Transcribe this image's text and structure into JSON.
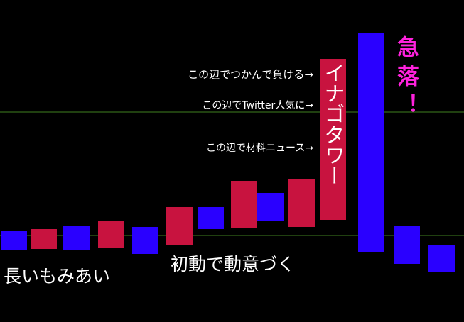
{
  "annotations": {
    "range": "長いもみあい",
    "initial_move": "初動で動意づく",
    "lose": "この辺でつかんで負ける→",
    "twitter": "この辺でTwitter人気に→",
    "news": "この辺で材料ニュース→",
    "tower": "イナゴタワー",
    "crash": "急落！"
  }
}
